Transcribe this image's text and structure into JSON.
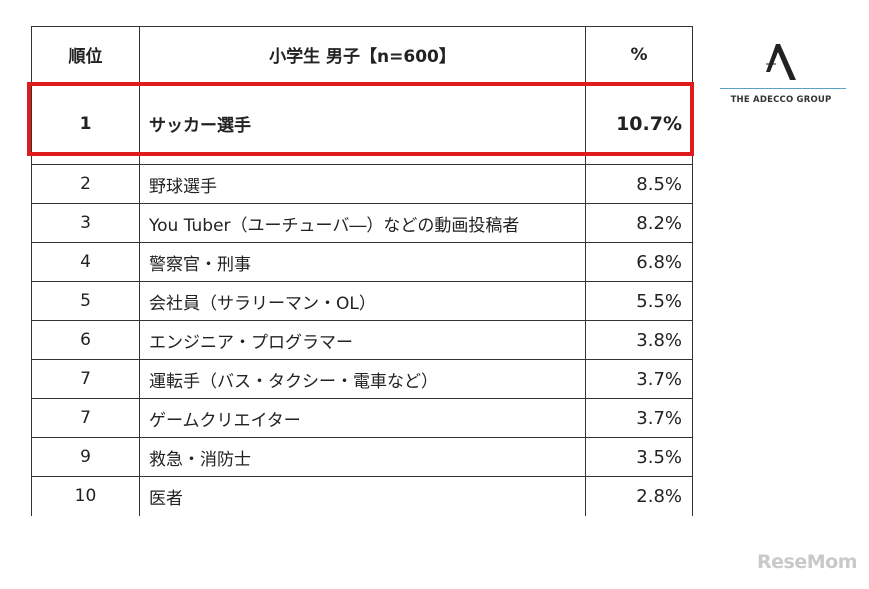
{
  "table": {
    "headers": {
      "rank": "順位",
      "job": "小学生 男子【n=600】",
      "pct": "%"
    },
    "rows": [
      {
        "rank": "1",
        "job": "サッカー選手",
        "pct": "10.7%"
      },
      {
        "rank": "2",
        "job": "野球選手",
        "pct": "8.5%"
      },
      {
        "rank": "3",
        "job": "You Tuber（ユーチューバ―）などの動画投稿者",
        "pct": "8.2%"
      },
      {
        "rank": "4",
        "job": "警察官・刑事",
        "pct": "6.8%"
      },
      {
        "rank": "5",
        "job": "会社員（サラリーマン・OL）",
        "pct": "5.5%"
      },
      {
        "rank": "6",
        "job": "エンジニア・プログラマー",
        "pct": "3.8%"
      },
      {
        "rank": "7",
        "job": "運転手（バス・タクシー・電車など）",
        "pct": "3.7%"
      },
      {
        "rank": "7",
        "job": "ゲームクリエイター",
        "pct": "3.7%"
      },
      {
        "rank": "9",
        "job": "救急・消防士",
        "pct": "3.5%"
      },
      {
        "rank": "10",
        "job": "医者",
        "pct": "2.8%"
      }
    ]
  },
  "highlight_color": "#e01b1b",
  "logo": {
    "text": "THE ADECCO GROUP",
    "icon": "adecco-a-logo-icon"
  },
  "watermark": {
    "text": "ReseMom"
  }
}
